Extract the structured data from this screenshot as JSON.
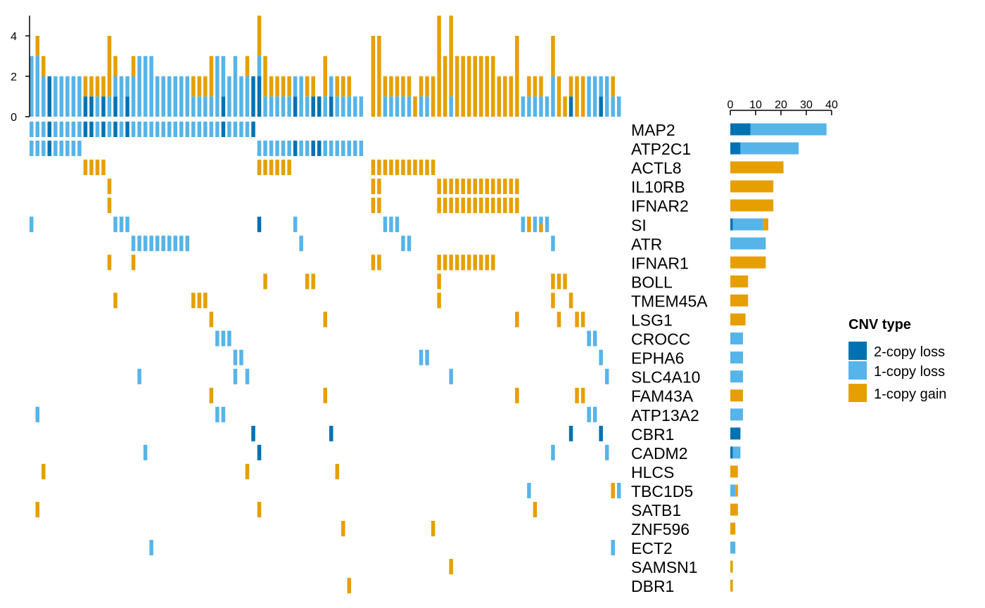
{
  "chart_data": {
    "type": "heatmap",
    "subtype": "oncoprint",
    "title": "",
    "n_samples": 99,
    "colors": {
      "2-copy loss": "#0072B2",
      "1-copy loss": "#56B4E9",
      "1-copy gain": "#E69F00"
    },
    "genes": [
      "MAP2",
      "ATP2C1",
      "ACTL8",
      "IL10RB",
      "IFNAR2",
      "SI",
      "ATR",
      "IFNAR1",
      "BOLL",
      "TMEM45A",
      "LSG1",
      "CROCC",
      "EPHA6",
      "SLC4A10",
      "FAM43A",
      "ATP13A2",
      "CBR1",
      "CADM2",
      "HLCS",
      "TBC1D5",
      "SATB1",
      "ZNF596",
      "ECT2",
      "SAMSN1",
      "DBR1"
    ],
    "alterations": {
      "MAP2": {
        "2-copy loss": [
          3,
          9,
          10,
          12,
          14,
          16,
          32,
          37
        ],
        "1-copy loss": [
          0,
          1,
          2,
          4,
          5,
          6,
          7,
          8,
          11,
          13,
          15,
          17,
          18,
          19,
          20,
          21,
          22,
          23,
          24,
          25,
          26,
          27,
          28,
          29,
          30,
          31,
          33,
          34,
          35,
          36
        ]
      },
      "ATP2C1": {
        "2-copy loss": [
          3,
          44,
          47,
          48
        ],
        "1-copy loss": [
          0,
          1,
          2,
          4,
          5,
          6,
          7,
          8,
          38,
          39,
          40,
          41,
          42,
          43,
          45,
          46,
          49,
          50,
          51,
          52,
          53,
          54,
          55
        ]
      },
      "ACTL8": {
        "1-copy gain": [
          9,
          10,
          11,
          12,
          38,
          39,
          40,
          41,
          42,
          43,
          57,
          58,
          59,
          60,
          61,
          62,
          63,
          64,
          65,
          66,
          67
        ]
      },
      "IL10RB": {
        "1-copy gain": [
          13,
          57,
          58,
          68,
          69,
          70,
          71,
          72,
          73,
          74,
          75,
          76,
          77,
          78,
          79,
          80,
          81
        ]
      },
      "IFNAR2": {
        "1-copy gain": [
          13,
          57,
          58,
          68,
          69,
          70,
          71,
          72,
          73,
          74,
          75,
          76,
          77,
          78,
          79,
          80,
          81
        ]
      },
      "SI": {
        "2-copy loss": [
          38
        ],
        "1-copy loss": [
          0,
          14,
          15,
          16,
          44,
          59,
          60,
          61,
          82,
          84,
          85,
          86
        ],
        "1-copy gain": [
          83,
          85
        ]
      },
      "ATR": {
        "1-copy loss": [
          17,
          18,
          19,
          20,
          21,
          22,
          23,
          24,
          25,
          26,
          45,
          62,
          63,
          87
        ]
      },
      "IFNAR1": {
        "1-copy gain": [
          13,
          17,
          57,
          58,
          68,
          69,
          70,
          71,
          72,
          73,
          74,
          75,
          76,
          77
        ]
      },
      "BOLL": {
        "1-copy gain": [
          39,
          46,
          47,
          68,
          87,
          88,
          89
        ]
      },
      "TMEM45A": {
        "1-copy gain": [
          14,
          27,
          28,
          29,
          68,
          87,
          90
        ]
      },
      "LSG1": {
        "1-copy gain": [
          30,
          49,
          81,
          88,
          91,
          92
        ]
      },
      "CROCC": {
        "1-copy loss": [
          31,
          32,
          33,
          93,
          94
        ]
      },
      "EPHA6": {
        "1-copy loss": [
          34,
          35,
          65,
          66,
          95
        ]
      },
      "SLC4A10": {
        "1-copy loss": [
          18,
          34,
          36,
          70,
          96
        ]
      },
      "FAM43A": {
        "1-copy gain": [
          30,
          49,
          81,
          91,
          92
        ]
      },
      "ATP13A2": {
        "1-copy loss": [
          1,
          31,
          32,
          93,
          94
        ]
      },
      "CBR1": {
        "2-copy loss": [
          37,
          50,
          90,
          95
        ]
      },
      "CADM2": {
        "2-copy loss": [
          38
        ],
        "1-copy loss": [
          19,
          87,
          96
        ]
      },
      "HLCS": {
        "1-copy gain": [
          2,
          36,
          51
        ]
      },
      "TBC1D5": {
        "1-copy loss": [
          83,
          98
        ],
        "1-copy gain": [
          97
        ]
      },
      "SATB1": {
        "1-copy gain": [
          1,
          38,
          84
        ]
      },
      "ZNF596": {
        "1-copy gain": [
          52,
          67
        ]
      },
      "ECT2": {
        "1-copy loss": [
          20,
          97
        ]
      },
      "SAMSN1": {
        "1-copy gain": [
          70
        ]
      },
      "DBR1": {
        "1-copy gain": [
          53
        ]
      }
    },
    "top_barplot": {
      "ylabel": "",
      "ylim": [
        0,
        5
      ],
      "ticks": [
        "0",
        "2",
        "4"
      ],
      "values": "per-sample count of altered genes, stacked by CNV type"
    },
    "right_barplot": {
      "xlabel": "",
      "xlim": [
        0,
        40
      ],
      "ticks": [
        "0",
        "10",
        "20",
        "30",
        "40"
      ],
      "values": "per-gene count of altered samples, stacked by CNV type"
    },
    "legend": {
      "title": "CNV type",
      "placement": "right",
      "entries": [
        "2-copy loss",
        "1-copy loss",
        "1-copy gain"
      ]
    }
  }
}
